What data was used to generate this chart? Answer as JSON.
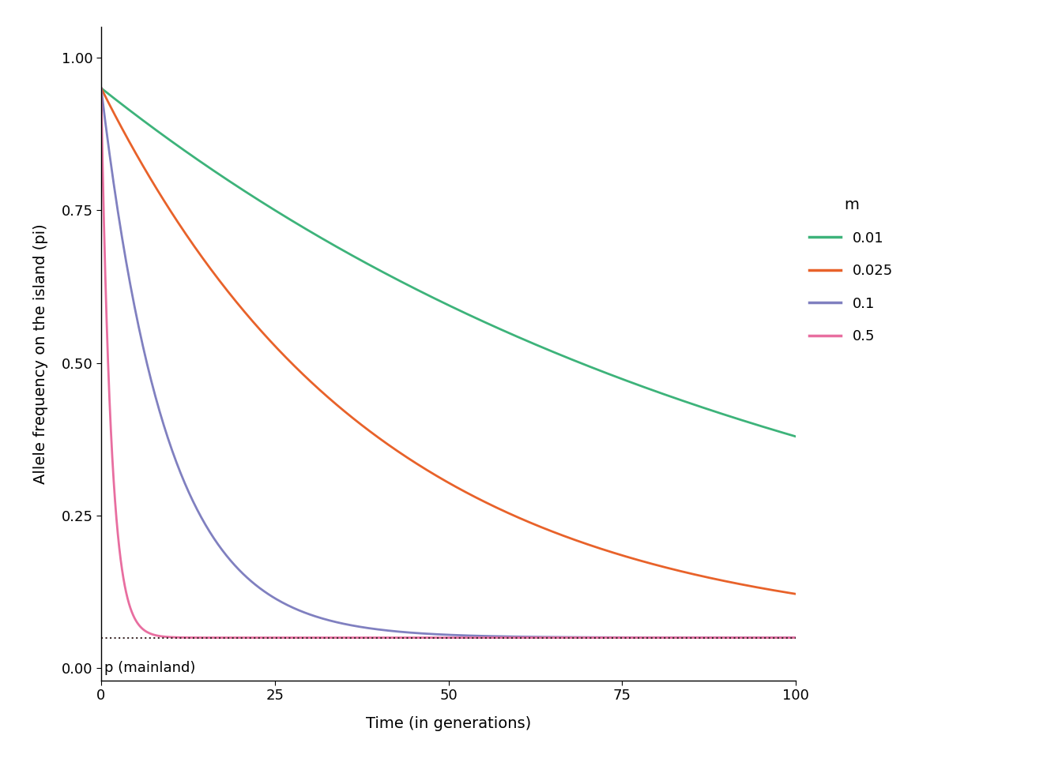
{
  "pm0": 0.05,
  "pi0": 0.95,
  "migration_rates": [
    0.01,
    0.025,
    0.1,
    0.5
  ],
  "migration_labels": [
    "0.01",
    "0.025",
    "0.1",
    "0.5"
  ],
  "line_colors": [
    "#3DB37A",
    "#E8622A",
    "#8080C0",
    "#E86EA0"
  ],
  "t_max": 100,
  "t_steps": 500,
  "xlabel": "Time (in generations)",
  "ylabel": "Allele frequency on the island (pi)",
  "legend_title": "m",
  "xlim": [
    0,
    100
  ],
  "ylim": [
    -0.02,
    1.05
  ],
  "yticks": [
    0.0,
    0.25,
    0.5,
    0.75,
    1.0
  ],
  "xticks": [
    0,
    25,
    50,
    75,
    100
  ],
  "dotted_line_color": "#3D2B2B",
  "annotation_text": "p (mainland)",
  "background_color": "#FFFFFF",
  "line_width": 2.0,
  "axis_label_fontsize": 14,
  "tick_fontsize": 13,
  "legend_fontsize": 13,
  "legend_title_fontsize": 14
}
